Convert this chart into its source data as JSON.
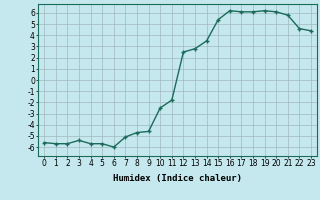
{
  "x": [
    0,
    1,
    2,
    3,
    4,
    5,
    6,
    7,
    8,
    9,
    10,
    11,
    12,
    13,
    14,
    15,
    16,
    17,
    18,
    19,
    20,
    21,
    22,
    23
  ],
  "y": [
    -5.6,
    -5.7,
    -5.7,
    -5.4,
    -5.7,
    -5.7,
    -6.0,
    -5.1,
    -4.7,
    -4.6,
    -2.5,
    -1.8,
    2.5,
    2.8,
    3.5,
    5.4,
    6.2,
    6.1,
    6.1,
    6.2,
    6.1,
    5.8,
    4.6,
    4.4
  ],
  "line_color": "#1a6b5a",
  "marker": "+",
  "marker_size": 3,
  "xlabel": "Humidex (Indice chaleur)",
  "xlim": [
    -0.5,
    23.5
  ],
  "ylim": [
    -6.8,
    6.8
  ],
  "yticks": [
    -6,
    -5,
    -4,
    -3,
    -2,
    -1,
    0,
    1,
    2,
    3,
    4,
    5,
    6
  ],
  "xticks": [
    0,
    1,
    2,
    3,
    4,
    5,
    6,
    7,
    8,
    9,
    10,
    11,
    12,
    13,
    14,
    15,
    16,
    17,
    18,
    19,
    20,
    21,
    22,
    23
  ],
  "bg_color": "#c5e8ee",
  "grid_color": "#a0b8c0",
  "line_width": 1.0,
  "tick_font_size": 5.5,
  "xlabel_font_size": 6.5
}
